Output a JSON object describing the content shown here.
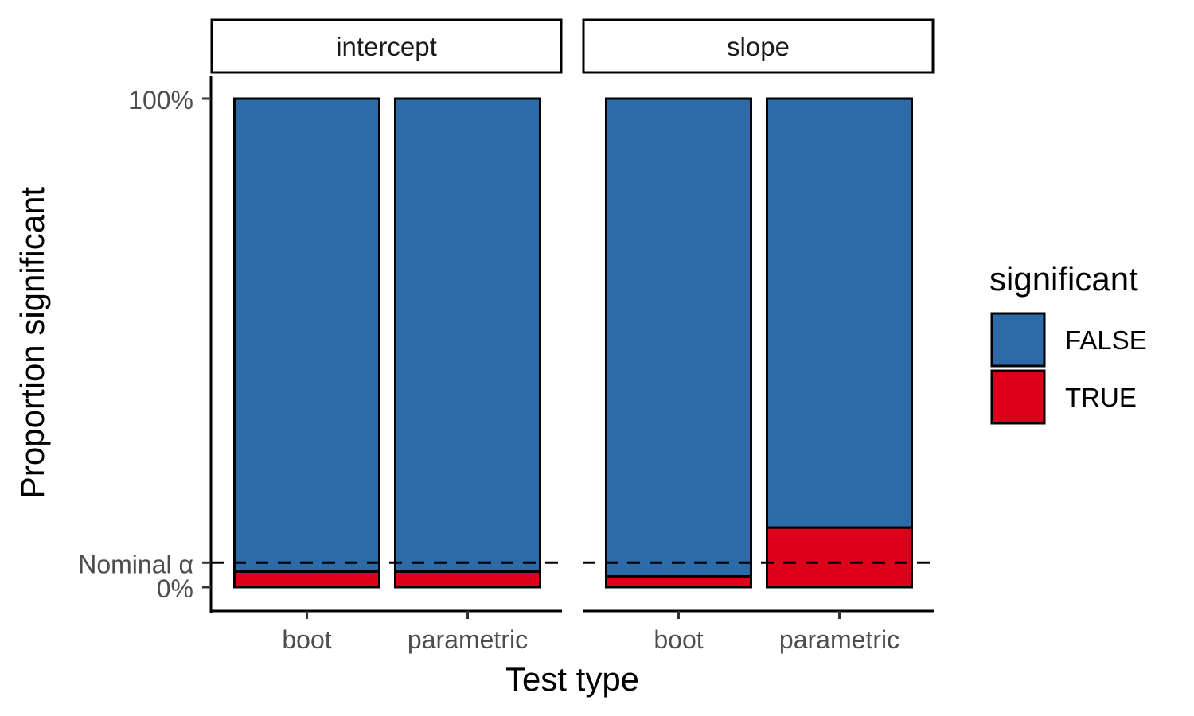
{
  "chart_data": {
    "type": "bar",
    "stacked": true,
    "facets": [
      {
        "label": "intercept",
        "categories": [
          "boot",
          "parametric"
        ],
        "series": [
          {
            "name": "TRUE",
            "values": [
              0.032,
              0.032
            ]
          },
          {
            "name": "FALSE",
            "values": [
              0.968,
              0.968
            ]
          }
        ]
      },
      {
        "label": "slope",
        "categories": [
          "boot",
          "parametric"
        ],
        "series": [
          {
            "name": "TRUE",
            "values": [
              0.022,
              0.122
            ]
          },
          {
            "name": "FALSE",
            "values": [
              0.978,
              0.878
            ]
          }
        ]
      }
    ],
    "xlabel": "Test type",
    "ylabel": "Proportion significant",
    "ylim": [
      0,
      1
    ],
    "y_ticks": [
      {
        "value": 0,
        "label": "0%"
      },
      {
        "value": 0.05,
        "label": "Nominal α"
      },
      {
        "value": 1,
        "label": "100%"
      }
    ],
    "reference_line": {
      "value": 0.05,
      "style": "dashed"
    },
    "legend": {
      "title": "significant",
      "placement": "right",
      "entries": [
        {
          "label": "FALSE",
          "color": "#2D6AA8"
        },
        {
          "label": "TRUE",
          "color": "#DC001A"
        }
      ]
    },
    "grid": false,
    "colors": {
      "FALSE": "#2D6AA8",
      "TRUE": "#DC001A"
    }
  }
}
